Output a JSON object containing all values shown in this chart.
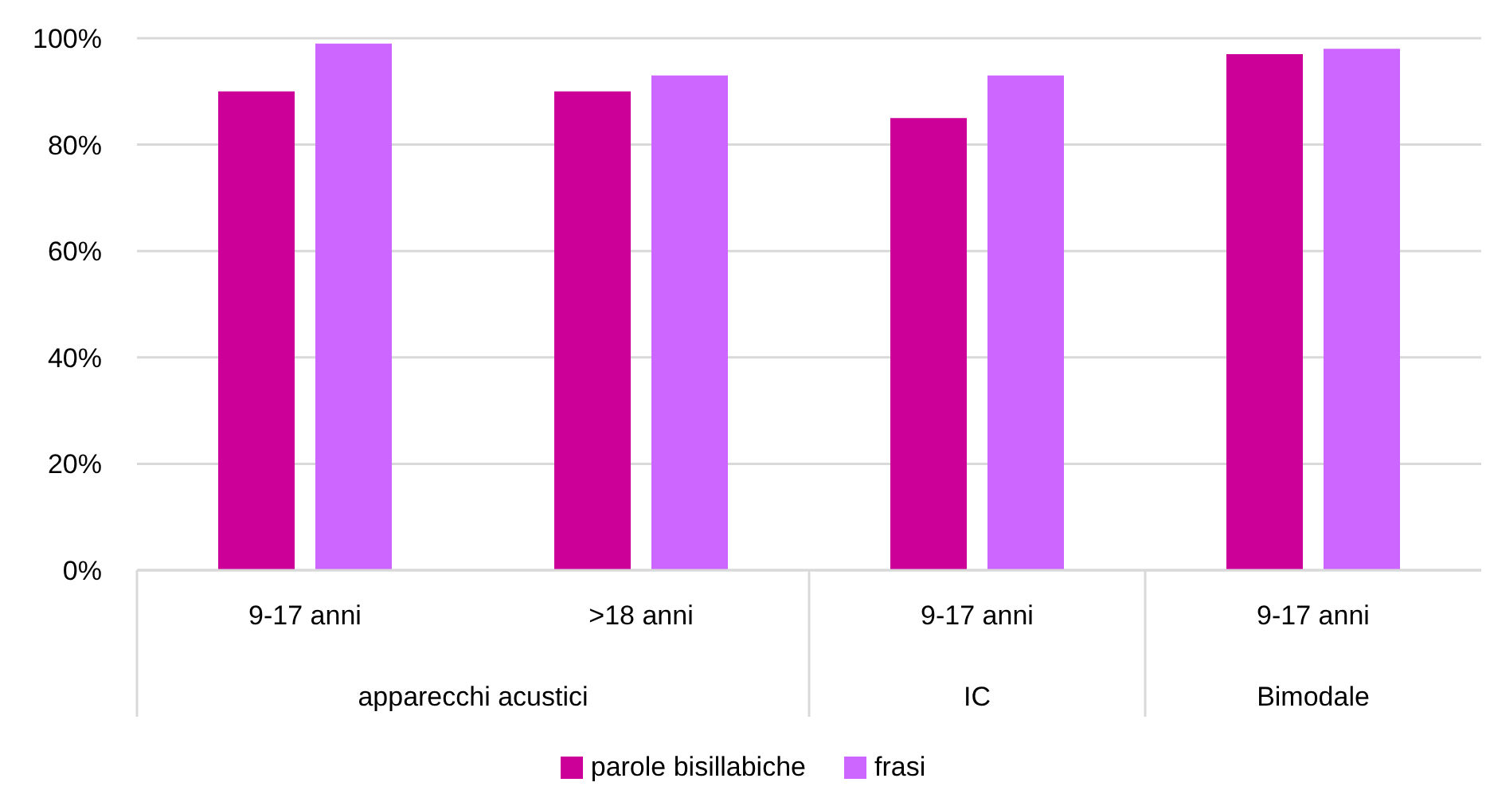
{
  "chart_data": {
    "type": "bar",
    "categories": [
      "9-17 anni",
      ">18 anni",
      "9-17 anni",
      "9-17 anni"
    ],
    "annotations": [
      "apparecchi acustici",
      "IC",
      "Bimodale"
    ],
    "series": [
      {
        "name": "parole bisillabiche",
        "color": "#cc0099",
        "values": [
          90,
          90,
          85,
          97
        ]
      },
      {
        "name": "frasi",
        "color": "#cc66ff",
        "values": [
          99,
          93,
          93,
          98
        ]
      }
    ],
    "ylim": [
      0,
      100
    ],
    "yticks": [
      {
        "value": 0,
        "label": "0%"
      },
      {
        "value": 20,
        "label": "20%"
      },
      {
        "value": 40,
        "label": "40%"
      },
      {
        "value": 60,
        "label": "60%"
      },
      {
        "value": 80,
        "label": "80%"
      },
      {
        "value": 100,
        "label": "100%"
      }
    ],
    "grid": "y",
    "legend": "bottom"
  }
}
